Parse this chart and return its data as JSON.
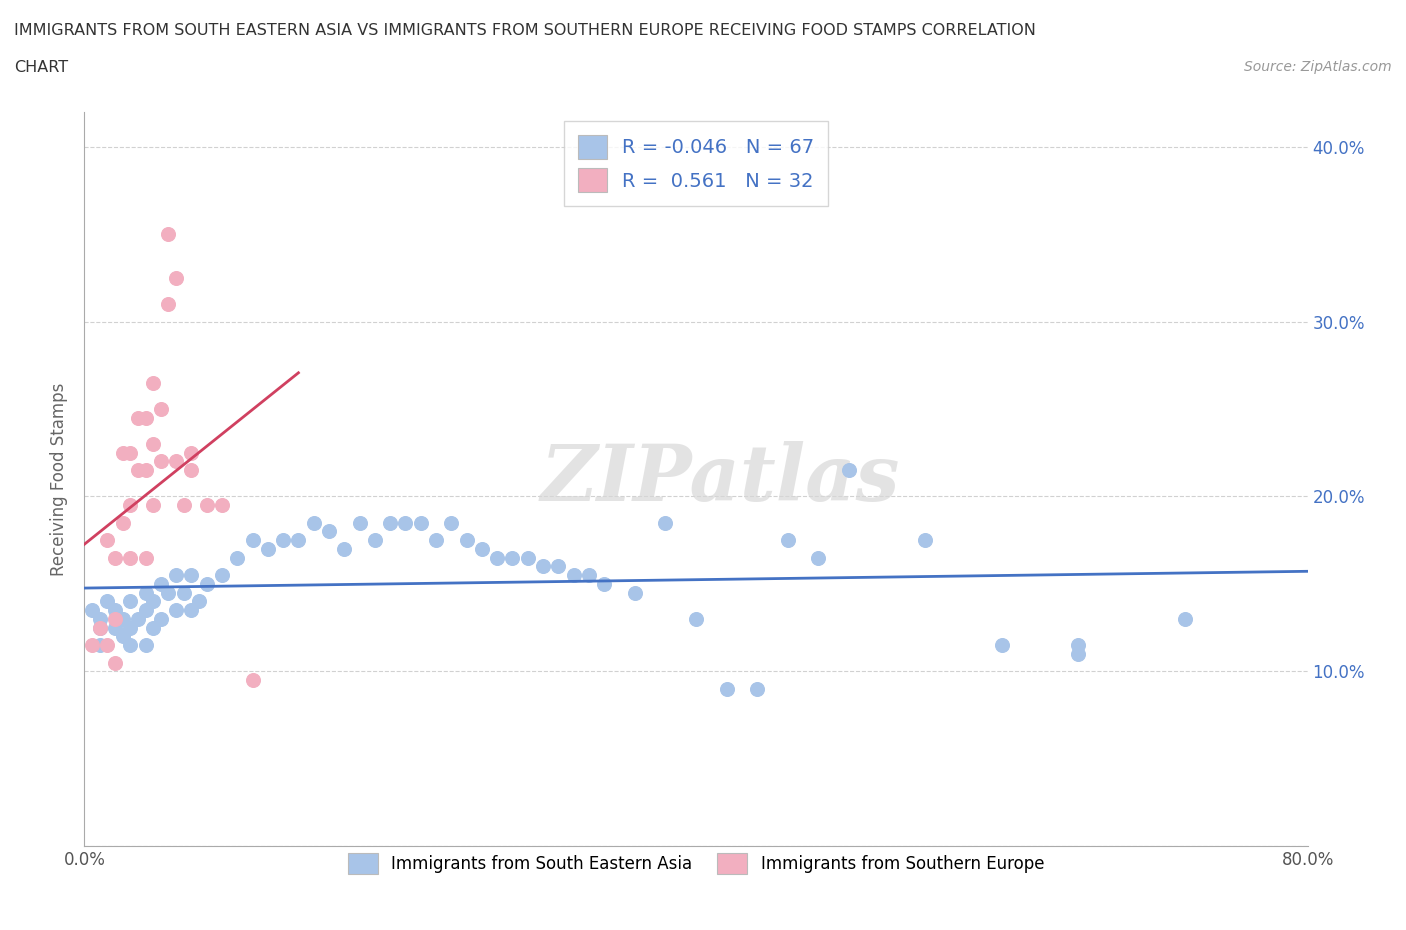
{
  "title_line1": "IMMIGRANTS FROM SOUTH EASTERN ASIA VS IMMIGRANTS FROM SOUTHERN EUROPE RECEIVING FOOD STAMPS CORRELATION",
  "title_line2": "CHART",
  "source": "Source: ZipAtlas.com",
  "ylabel": "Receiving Food Stamps",
  "xlim": [
    0.0,
    0.8
  ],
  "ylim": [
    0.0,
    0.42
  ],
  "xticks": [
    0.0,
    0.1,
    0.2,
    0.3,
    0.4,
    0.5,
    0.6,
    0.7,
    0.8
  ],
  "xticklabels": [
    "0.0%",
    "",
    "",
    "",
    "",
    "",
    "",
    "",
    "80.0%"
  ],
  "yticks": [
    0.0,
    0.1,
    0.2,
    0.3,
    0.4
  ],
  "right_yticklabels": [
    "",
    "10.0%",
    "20.0%",
    "30.0%",
    "40.0%"
  ],
  "blue_color": "#a8c4e8",
  "pink_color": "#f2afc0",
  "blue_line_color": "#4472c4",
  "pink_line_color": "#d04060",
  "R_blue": -0.046,
  "N_blue": 67,
  "R_pink": 0.561,
  "N_pink": 32,
  "watermark": "ZIPatlas",
  "legend_label_blue": "Immigrants from South Eastern Asia",
  "legend_label_pink": "Immigrants from Southern Europe",
  "blue_scatter_x": [
    0.005,
    0.01,
    0.01,
    0.01,
    0.015,
    0.02,
    0.02,
    0.025,
    0.025,
    0.03,
    0.03,
    0.03,
    0.035,
    0.04,
    0.04,
    0.04,
    0.045,
    0.045,
    0.05,
    0.05,
    0.055,
    0.06,
    0.06,
    0.065,
    0.07,
    0.07,
    0.075,
    0.08,
    0.09,
    0.1,
    0.11,
    0.12,
    0.13,
    0.14,
    0.15,
    0.16,
    0.17,
    0.18,
    0.19,
    0.2,
    0.21,
    0.22,
    0.23,
    0.24,
    0.25,
    0.26,
    0.27,
    0.28,
    0.29,
    0.3,
    0.31,
    0.32,
    0.33,
    0.34,
    0.36,
    0.38,
    0.4,
    0.42,
    0.44,
    0.46,
    0.48,
    0.5,
    0.55,
    0.6,
    0.65,
    0.65,
    0.72
  ],
  "blue_scatter_y": [
    0.135,
    0.13,
    0.125,
    0.115,
    0.14,
    0.135,
    0.125,
    0.13,
    0.12,
    0.14,
    0.125,
    0.115,
    0.13,
    0.145,
    0.135,
    0.115,
    0.14,
    0.125,
    0.15,
    0.13,
    0.145,
    0.155,
    0.135,
    0.145,
    0.155,
    0.135,
    0.14,
    0.15,
    0.155,
    0.165,
    0.175,
    0.17,
    0.175,
    0.175,
    0.185,
    0.18,
    0.17,
    0.185,
    0.175,
    0.185,
    0.185,
    0.185,
    0.175,
    0.185,
    0.175,
    0.17,
    0.165,
    0.165,
    0.165,
    0.16,
    0.16,
    0.155,
    0.155,
    0.15,
    0.145,
    0.185,
    0.13,
    0.09,
    0.09,
    0.175,
    0.165,
    0.215,
    0.175,
    0.115,
    0.115,
    0.11,
    0.13
  ],
  "pink_scatter_x": [
    0.005,
    0.01,
    0.015,
    0.015,
    0.02,
    0.02,
    0.02,
    0.025,
    0.025,
    0.03,
    0.03,
    0.03,
    0.035,
    0.035,
    0.04,
    0.04,
    0.04,
    0.045,
    0.045,
    0.045,
    0.05,
    0.05,
    0.055,
    0.055,
    0.06,
    0.06,
    0.065,
    0.07,
    0.07,
    0.08,
    0.09,
    0.11
  ],
  "pink_scatter_y": [
    0.115,
    0.125,
    0.175,
    0.115,
    0.165,
    0.13,
    0.105,
    0.225,
    0.185,
    0.225,
    0.195,
    0.165,
    0.245,
    0.215,
    0.245,
    0.215,
    0.165,
    0.265,
    0.23,
    0.195,
    0.25,
    0.22,
    0.31,
    0.35,
    0.325,
    0.22,
    0.195,
    0.225,
    0.215,
    0.195,
    0.195,
    0.095
  ]
}
